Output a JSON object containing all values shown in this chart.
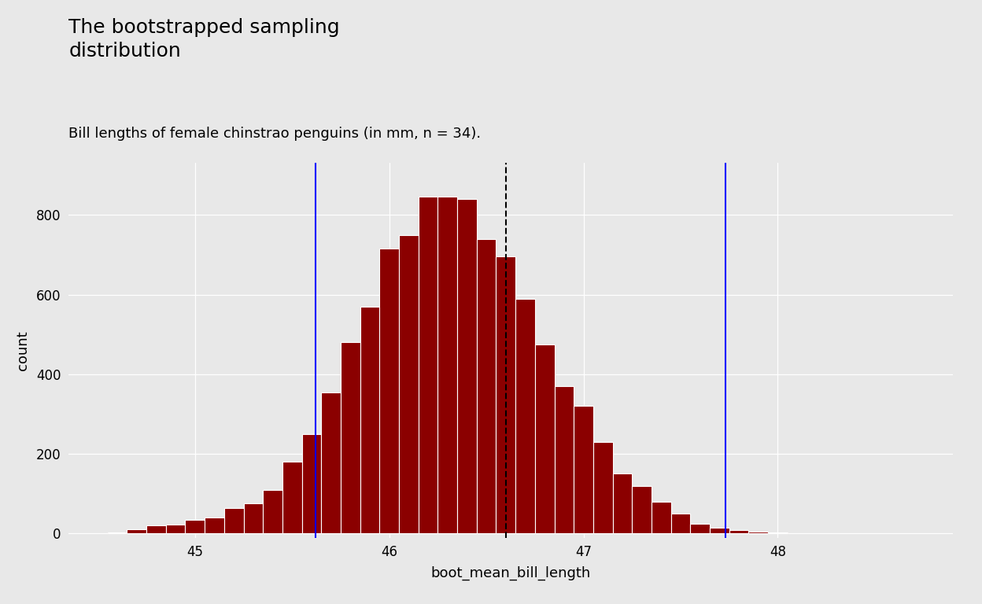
{
  "title": "The bootstrapped sampling\ndistribution",
  "subtitle": "Bill lengths of female chinstrao penguins (in mm, n = 34).",
  "xlabel": "boot_mean_bill_length",
  "ylabel": "count",
  "fig_background_color": "#e8e8e8",
  "plot_background_color": "#e8e8e8",
  "bar_color": "#8B0000",
  "bar_edge_color": "#ffffff",
  "dashed_line_x": 46.6,
  "ci_lower": 45.62,
  "ci_upper": 47.73,
  "xlim": [
    44.35,
    48.9
  ],
  "ylim": [
    -10,
    930
  ],
  "yticks": [
    0,
    200,
    400,
    600,
    800
  ],
  "xticks": [
    45,
    46,
    47,
    48
  ],
  "bin_width": 0.1,
  "title_fontsize": 18,
  "subtitle_fontsize": 13,
  "axis_label_fontsize": 13,
  "tick_fontsize": 12,
  "bar_heights": [
    2,
    10,
    20,
    22,
    35,
    40,
    65,
    75,
    110,
    180,
    250,
    355,
    480,
    570,
    715,
    750,
    845,
    845,
    840,
    740,
    695,
    590,
    475,
    370,
    320,
    230,
    150,
    120,
    80,
    50,
    25,
    15,
    8,
    4,
    2
  ],
  "bar_left_edges": [
    44.55,
    44.65,
    44.75,
    44.85,
    44.95,
    45.05,
    45.15,
    45.25,
    45.35,
    45.45,
    45.55,
    45.65,
    45.75,
    45.85,
    45.95,
    46.05,
    46.15,
    46.25,
    46.35,
    46.45,
    46.55,
    46.65,
    46.75,
    46.85,
    46.95,
    47.05,
    47.15,
    47.25,
    47.35,
    47.45,
    47.55,
    47.65,
    47.75,
    47.85,
    47.95
  ]
}
